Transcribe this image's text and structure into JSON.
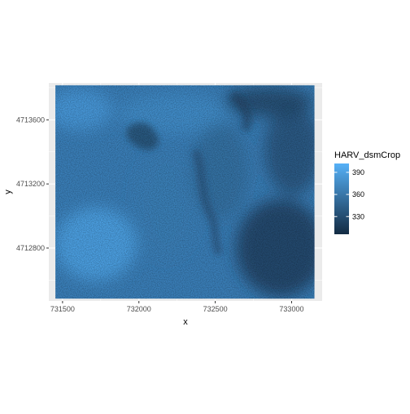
{
  "chart_data": {
    "type": "heatmap",
    "title": "",
    "xlabel": "x",
    "ylabel": "y",
    "xlim": [
      731410,
      733200
    ],
    "ylim": [
      4712470,
      4713830
    ],
    "raster_extent": {
      "x": [
        731453,
        733150
      ],
      "y": [
        4712484,
        4713816
      ]
    },
    "x_ticks": [
      {
        "value": 731500,
        "label": "731500"
      },
      {
        "value": 732000,
        "label": "732000"
      },
      {
        "value": 732500,
        "label": "732500"
      },
      {
        "value": 733000,
        "label": "733000"
      }
    ],
    "y_ticks": [
      {
        "value": 4712800,
        "label": "4712800"
      },
      {
        "value": 4713200,
        "label": "4713200"
      },
      {
        "value": 4713600,
        "label": "4713600"
      }
    ],
    "grid": true,
    "panel_background": "#ebebeb",
    "legend": {
      "title": "HARV_dsmCrop",
      "placement": "right",
      "min": 306,
      "max": 402,
      "low_color": "#132b43",
      "high_color": "#56b1f7",
      "breaks": [
        {
          "value": 390,
          "label": "390"
        },
        {
          "value": 360,
          "label": "360"
        },
        {
          "value": 330,
          "label": "330"
        }
      ]
    }
  }
}
